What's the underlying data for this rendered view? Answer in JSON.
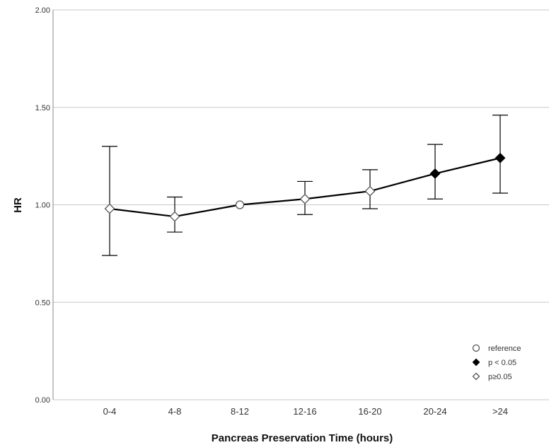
{
  "chart_data": {
    "type": "line",
    "title": "",
    "xlabel": "Pancreas Preservation Time (hours)",
    "ylabel": "HR",
    "ylim": [
      0,
      2
    ],
    "yticks": [
      "0.00",
      "0.50",
      "1.00",
      "1.50",
      "2.00"
    ],
    "ytick_values": [
      0,
      0.5,
      1,
      1.5,
      2
    ],
    "grid": "horizontal",
    "legend_position": "bottom-right",
    "categories": [
      "0-4",
      "4-8",
      "8-12",
      "12-16",
      "16-20",
      "20-24",
      ">24"
    ],
    "points": [
      {
        "category": "0-4",
        "hr": 0.98,
        "lower": 0.74,
        "upper": 1.3,
        "group": "ns"
      },
      {
        "category": "4-8",
        "hr": 0.94,
        "lower": 0.86,
        "upper": 1.04,
        "group": "ns"
      },
      {
        "category": "8-12",
        "hr": 1.0,
        "lower": null,
        "upper": null,
        "group": "ref"
      },
      {
        "category": "12-16",
        "hr": 1.03,
        "lower": 0.95,
        "upper": 1.12,
        "group": "ns"
      },
      {
        "category": "16-20",
        "hr": 1.07,
        "lower": 0.98,
        "upper": 1.18,
        "group": "ns"
      },
      {
        "category": "20-24",
        "hr": 1.16,
        "lower": 1.03,
        "upper": 1.31,
        "group": "sig"
      },
      {
        "category": ">24",
        "hr": 1.24,
        "lower": 1.06,
        "upper": 1.46,
        "group": "sig"
      }
    ],
    "legend": [
      {
        "key": "ref",
        "marker": "open-circle",
        "label": "reference"
      },
      {
        "key": "sig",
        "marker": "filled-diamond",
        "label": "p < 0.05"
      },
      {
        "key": "ns",
        "marker": "open-diamond",
        "label": "p≥0.05"
      }
    ],
    "colors": {
      "line": "#000000",
      "grid": "#c8c8c8",
      "axis": "#888888",
      "marker_fill_open": "#ffffff",
      "marker_fill_solid": "#000000"
    }
  }
}
